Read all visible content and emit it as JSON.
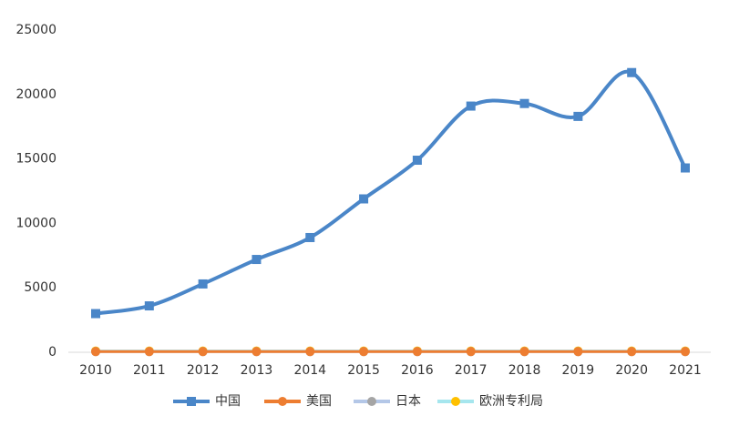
{
  "chart_data": {
    "type": "line",
    "categories": [
      "2010",
      "2011",
      "2012",
      "2013",
      "2014",
      "2015",
      "2016",
      "2017",
      "2018",
      "2019",
      "2020",
      "2021"
    ],
    "series": [
      {
        "name": "中国",
        "color": "#4a86c8",
        "marker": "square",
        "marker_color": "#4a86c8",
        "smooth": true,
        "values": [
          3000,
          3600,
          5300,
          7200,
          8900,
          11900,
          14900,
          19100,
          19300,
          18300,
          21700,
          14300
        ]
      },
      {
        "name": "美国",
        "color": "#ed7d31",
        "marker": "circle",
        "marker_color": "#ed7d31",
        "smooth": true,
        "values": [
          50,
          50,
          50,
          50,
          50,
          50,
          50,
          50,
          50,
          50,
          50,
          50
        ]
      },
      {
        "name": "日本",
        "color": "#b4c7e7",
        "marker": "circle",
        "marker_color": "#a5a5a5",
        "smooth": true,
        "values": [
          50,
          50,
          50,
          50,
          50,
          50,
          50,
          50,
          50,
          50,
          50,
          50
        ]
      },
      {
        "name": "欧洲专利局",
        "color": "#a6e6ee",
        "marker": "circle",
        "marker_color": "#ffc000",
        "smooth": true,
        "values": [
          100,
          100,
          100,
          100,
          100,
          100,
          100,
          100,
          100,
          100,
          100,
          100
        ]
      }
    ],
    "ylim": [
      0,
      25000
    ],
    "yticks": [
      0,
      5000,
      10000,
      15000,
      20000,
      25000
    ],
    "grid": false,
    "legend": "bottom"
  }
}
